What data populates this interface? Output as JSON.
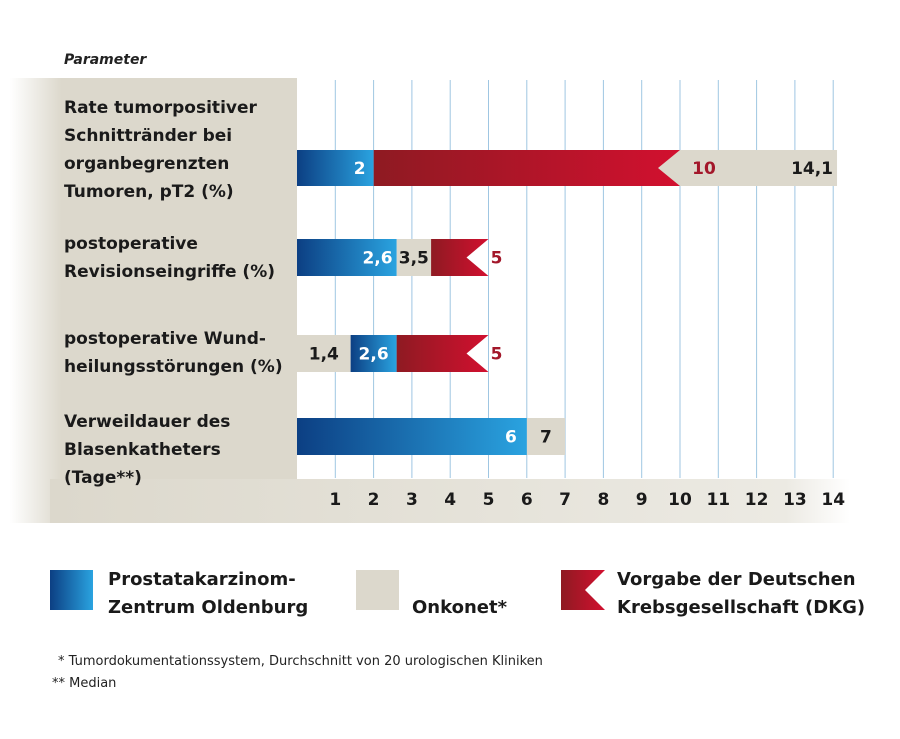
{
  "chart_data": {
    "type": "bar",
    "orientation": "horizontal",
    "category_header": "Parameter",
    "categories": [
      "Rate tumorpositiver Schnittränder bei organbegrenzten Tumoren, pT2 (%)",
      "postoperative Revisionseingriffe (%)",
      "postoperative Wundheilungsstörungen (%)",
      "Verweildauer des Blasenkatheters (Tage**)"
    ],
    "category_lines": [
      [
        "Rate tumorpositiver",
        "Schnittränder bei",
        "organbegrenzten",
        "Tumoren, pT2 (%)"
      ],
      [
        "postoperative",
        "Revisionseingriffe (%)"
      ],
      [
        "postoperative Wund-",
        "heilungsstörungen (%)"
      ],
      [
        "Verweildauer des",
        "Blasenkatheters (Tage**)"
      ]
    ],
    "series": [
      {
        "name": "Prostatakarzinom-Zentrum Oldenburg",
        "values": [
          2,
          2.6,
          2.6,
          6
        ],
        "labels": [
          "2",
          "2,6",
          "2,6",
          "6"
        ],
        "color": "#1e6fb8"
      },
      {
        "name": "Onkonet*",
        "values": [
          14.1,
          3.5,
          1.4,
          7
        ],
        "labels": [
          "14,1",
          "3,5",
          "1,4",
          "7"
        ],
        "color": "#dcd8cc"
      },
      {
        "name": "Vorgabe der Deutschen Krebsgesellschaft (DKG)",
        "values": [
          10,
          5,
          5,
          null
        ],
        "labels": [
          "10",
          "5",
          "5",
          ""
        ],
        "color": "#c8102e"
      }
    ],
    "xlim": [
      0,
      14
    ],
    "xticks": [
      1,
      2,
      3,
      4,
      5,
      6,
      7,
      8,
      9,
      10,
      11,
      12,
      13,
      14
    ],
    "grid": "vertical"
  },
  "legend": [
    {
      "lines": [
        "Prostatakarzinom-",
        "Zentrum Oldenburg"
      ]
    },
    {
      "lines": [
        "Onkonet*"
      ]
    },
    {
      "lines": [
        "Vorgabe der Deutschen",
        "Krebsgesellschaft (DKG)"
      ]
    }
  ],
  "footnotes": [
    "* Tumordokumentationssystem, Durchschnitt von 20 urologischen Kliniken",
    "** Median"
  ],
  "colors": {
    "panel": "#dcd8cc",
    "grid": "#9fc6e2",
    "blue_dark": "#0c3f83",
    "blue_light": "#2aa3e0",
    "red_dark": "#8e1a22",
    "red_light": "#d2102f",
    "grey_bar": "#dcd8cc",
    "red_label": "#a3172a",
    "text": "#1a1a1a",
    "white": "#ffffff"
  }
}
